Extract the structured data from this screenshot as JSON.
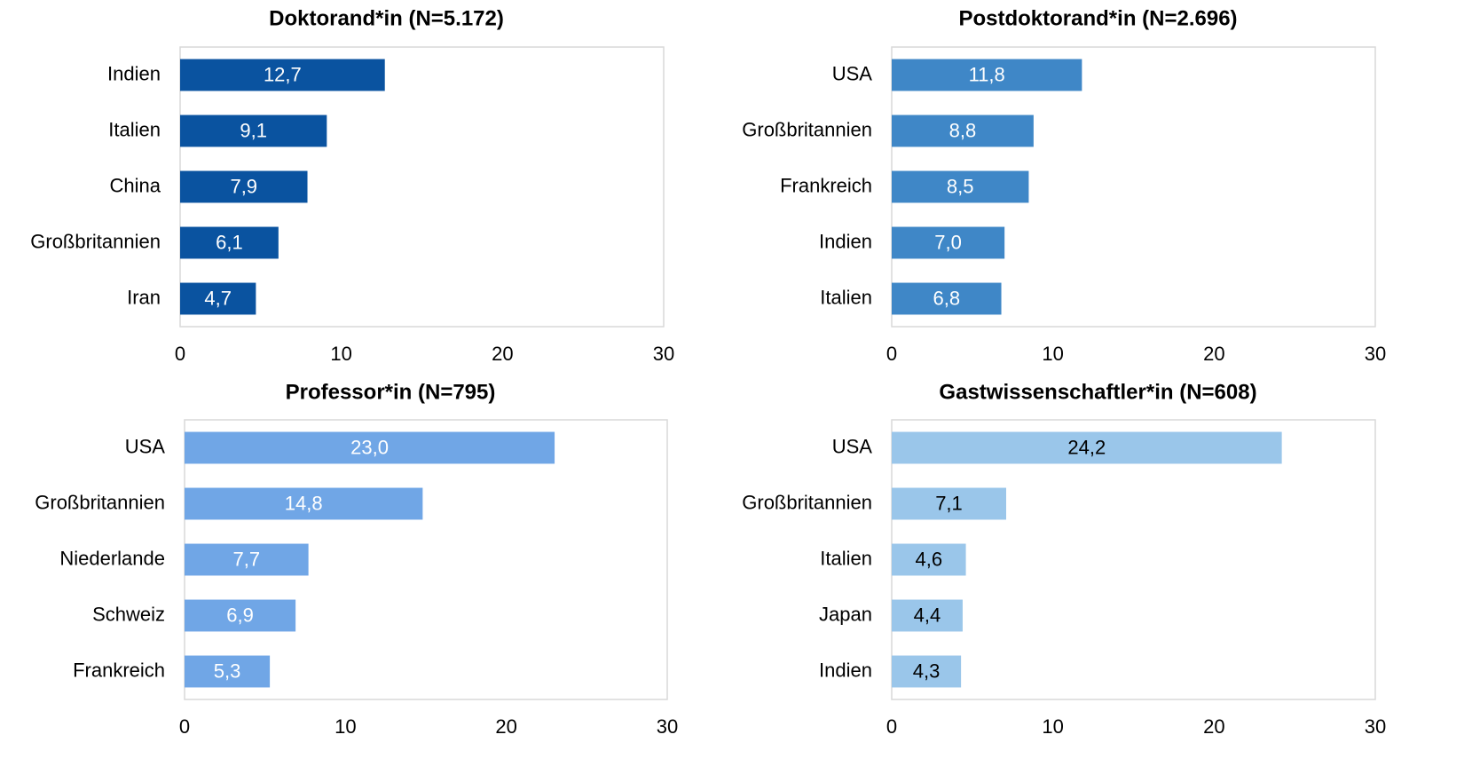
{
  "chart_data": [
    {
      "type": "bar",
      "orientation": "horizontal",
      "title": "Doktorand*in (N=5.172)",
      "categories": [
        "Indien",
        "Italien",
        "China",
        "Großbritannien",
        "Iran"
      ],
      "values": [
        12.7,
        9.1,
        7.9,
        6.1,
        4.7
      ],
      "value_labels": [
        "12,7",
        "9,1",
        "7,9",
        "6,1",
        "4,7"
      ],
      "color": "#0a53a0",
      "label_color": "#ffffff",
      "xlim": [
        0,
        30
      ],
      "xticks": [
        0,
        10,
        20,
        30
      ],
      "grid": false
    },
    {
      "type": "bar",
      "orientation": "horizontal",
      "title": "Postdoktorand*in (N=2.696)",
      "categories": [
        "USA",
        "Großbritannien",
        "Frankreich",
        "Indien",
        "Italien"
      ],
      "values": [
        11.8,
        8.8,
        8.5,
        7.0,
        6.8
      ],
      "value_labels": [
        "11,8",
        "8,8",
        "8,5",
        "7,0",
        "6,8"
      ],
      "color": "#3f87c7",
      "label_color": "#ffffff",
      "xlim": [
        0,
        30
      ],
      "xticks": [
        0,
        10,
        20,
        30
      ],
      "grid": false
    },
    {
      "type": "bar",
      "orientation": "horizontal",
      "title": "Professor*in (N=795)",
      "categories": [
        "USA",
        "Großbritannien",
        "Niederlande",
        "Schweiz",
        "Frankreich"
      ],
      "values": [
        23.0,
        14.8,
        7.7,
        6.9,
        5.3
      ],
      "value_labels": [
        "23,0",
        "14,8",
        "7,7",
        "6,9",
        "5,3"
      ],
      "color": "#70a6e6",
      "label_color": "#ffffff",
      "xlim": [
        0,
        30
      ],
      "xticks": [
        0,
        10,
        20,
        30
      ],
      "grid": false
    },
    {
      "type": "bar",
      "orientation": "horizontal",
      "title": "Gastwissenschaftler*in (N=608)",
      "categories": [
        "USA",
        "Großbritannien",
        "Italien",
        "Japan",
        "Indien"
      ],
      "values": [
        24.2,
        7.1,
        4.6,
        4.4,
        4.3
      ],
      "value_labels": [
        "24,2",
        "7,1",
        "4,6",
        "4,4",
        "4,3"
      ],
      "color": "#9ac6ea",
      "label_color": "#000000",
      "xlim": [
        0,
        30
      ],
      "xticks": [
        0,
        10,
        20,
        30
      ],
      "grid": false
    }
  ]
}
